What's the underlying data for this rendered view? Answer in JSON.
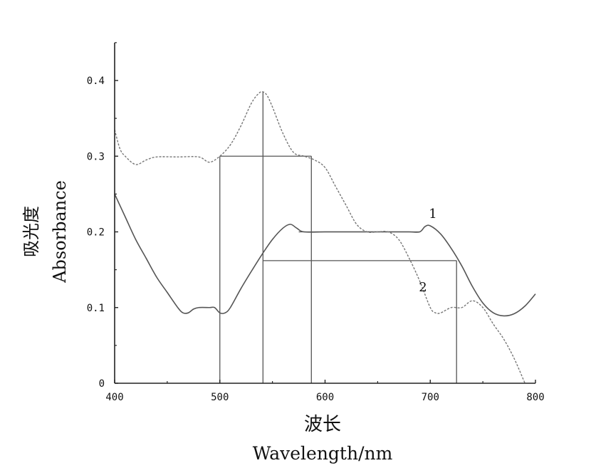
{
  "chart_data": {
    "type": "line",
    "xlabel_cn": "波长",
    "xlabel": "Wavelength/nm",
    "ylabel_cn": "吸光度",
    "ylabel": "Absorbance",
    "xlim": [
      400,
      800
    ],
    "ylim": [
      0,
      0.45
    ],
    "x_ticks": [
      400,
      500,
      600,
      700,
      800
    ],
    "y_ticks": [
      0,
      0.1,
      0.2,
      0.3,
      0.4
    ],
    "x_tick_labels": [
      "400",
      "500",
      "600",
      "700",
      "800"
    ],
    "y_tick_labels": [
      "0",
      "0.1",
      "0.2",
      "0.3",
      "0.4"
    ],
    "grid": false,
    "series": [
      {
        "name": "1",
        "style": "solid",
        "color": "#555555",
        "x": [
          400,
          410,
          420,
          430,
          440,
          450,
          460,
          465,
          470,
          475,
          480,
          490,
          495,
          500,
          505,
          510,
          520,
          530,
          540,
          550,
          560,
          567,
          573,
          580,
          600,
          620,
          640,
          660,
          680,
          690,
          695,
          700,
          710,
          720,
          730,
          740,
          750,
          760,
          770,
          780,
          790,
          800
        ],
        "y": [
          0.25,
          0.22,
          0.19,
          0.165,
          0.14,
          0.12,
          0.1,
          0.093,
          0.093,
          0.098,
          0.1,
          0.1,
          0.1,
          0.093,
          0.093,
          0.1,
          0.125,
          0.148,
          0.17,
          0.19,
          0.205,
          0.21,
          0.205,
          0.2,
          0.2,
          0.2,
          0.2,
          0.2,
          0.2,
          0.2,
          0.207,
          0.208,
          0.197,
          0.178,
          0.155,
          0.128,
          0.106,
          0.093,
          0.089,
          0.092,
          0.102,
          0.118
        ]
      },
      {
        "name": "2",
        "style": "dashed",
        "color": "#777777",
        "x": [
          400,
          405,
          410,
          420,
          430,
          440,
          460,
          480,
          490,
          500,
          510,
          520,
          530,
          537,
          541,
          545,
          550,
          560,
          570,
          580,
          590,
          600,
          610,
          620,
          630,
          640,
          650,
          660,
          670,
          680,
          690,
          700,
          705,
          710,
          720,
          730,
          740,
          750,
          760,
          770,
          780,
          790
        ],
        "y": [
          0.335,
          0.31,
          0.3,
          0.289,
          0.295,
          0.299,
          0.299,
          0.299,
          0.292,
          0.3,
          0.315,
          0.34,
          0.37,
          0.383,
          0.385,
          0.38,
          0.365,
          0.33,
          0.305,
          0.3,
          0.295,
          0.285,
          0.26,
          0.235,
          0.21,
          0.2,
          0.2,
          0.2,
          0.19,
          0.165,
          0.135,
          0.1,
          0.093,
          0.093,
          0.1,
          0.1,
          0.109,
          0.1,
          0.078,
          0.058,
          0.032,
          0.0
        ]
      }
    ],
    "annotations": {
      "curve_label_1": "1",
      "curve_label_2": "2"
    },
    "reference_lines": [
      {
        "type": "vertical",
        "x": 500,
        "y_end": 0.3
      },
      {
        "type": "vertical",
        "x": 541,
        "y_end": 0.385
      },
      {
        "type": "vertical",
        "x": 587,
        "y_end": 0.3
      },
      {
        "type": "vertical",
        "x": 725,
        "y_end": 0.162
      },
      {
        "type": "horizontal",
        "y": 0.3,
        "x_start": 500,
        "x_end": 587
      },
      {
        "type": "horizontal",
        "y": 0.2,
        "x_start": 575,
        "x_end": 690
      },
      {
        "type": "horizontal",
        "y": 0.162,
        "x_start": 541,
        "x_end": 725
      }
    ]
  }
}
